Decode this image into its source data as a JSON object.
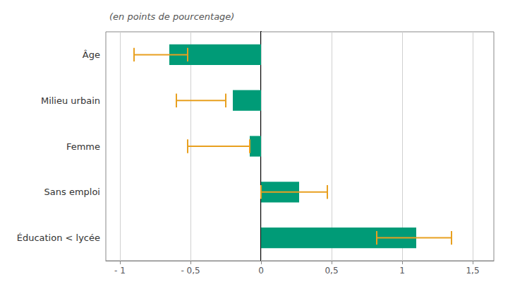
{
  "chart_data": {
    "type": "bar",
    "orientation": "horizontal",
    "subtitle": "(en points de pourcentage)",
    "categories": [
      "Éducation < lycée",
      "Sans emploi",
      "Femme",
      "Milieu urbain",
      "Âge"
    ],
    "values": [
      1.1,
      0.27,
      -0.08,
      -0.2,
      -0.65
    ],
    "error_low": [
      0.82,
      0.0,
      -0.52,
      -0.6,
      -0.9
    ],
    "error_high": [
      1.35,
      0.47,
      -0.08,
      -0.25,
      -0.52
    ],
    "color": "#009B77",
    "error_color": "#E8A020",
    "xlim": [
      -1.1,
      1.65
    ],
    "xticks": [
      {
        "value": -1,
        "label": "- 1"
      },
      {
        "value": -0.5,
        "label": "- 0,5"
      },
      0,
      {
        "value": 0.5,
        "label": "0,5"
      },
      1,
      {
        "value": 1.5,
        "label": "1,5"
      }
    ],
    "grid": true
  }
}
